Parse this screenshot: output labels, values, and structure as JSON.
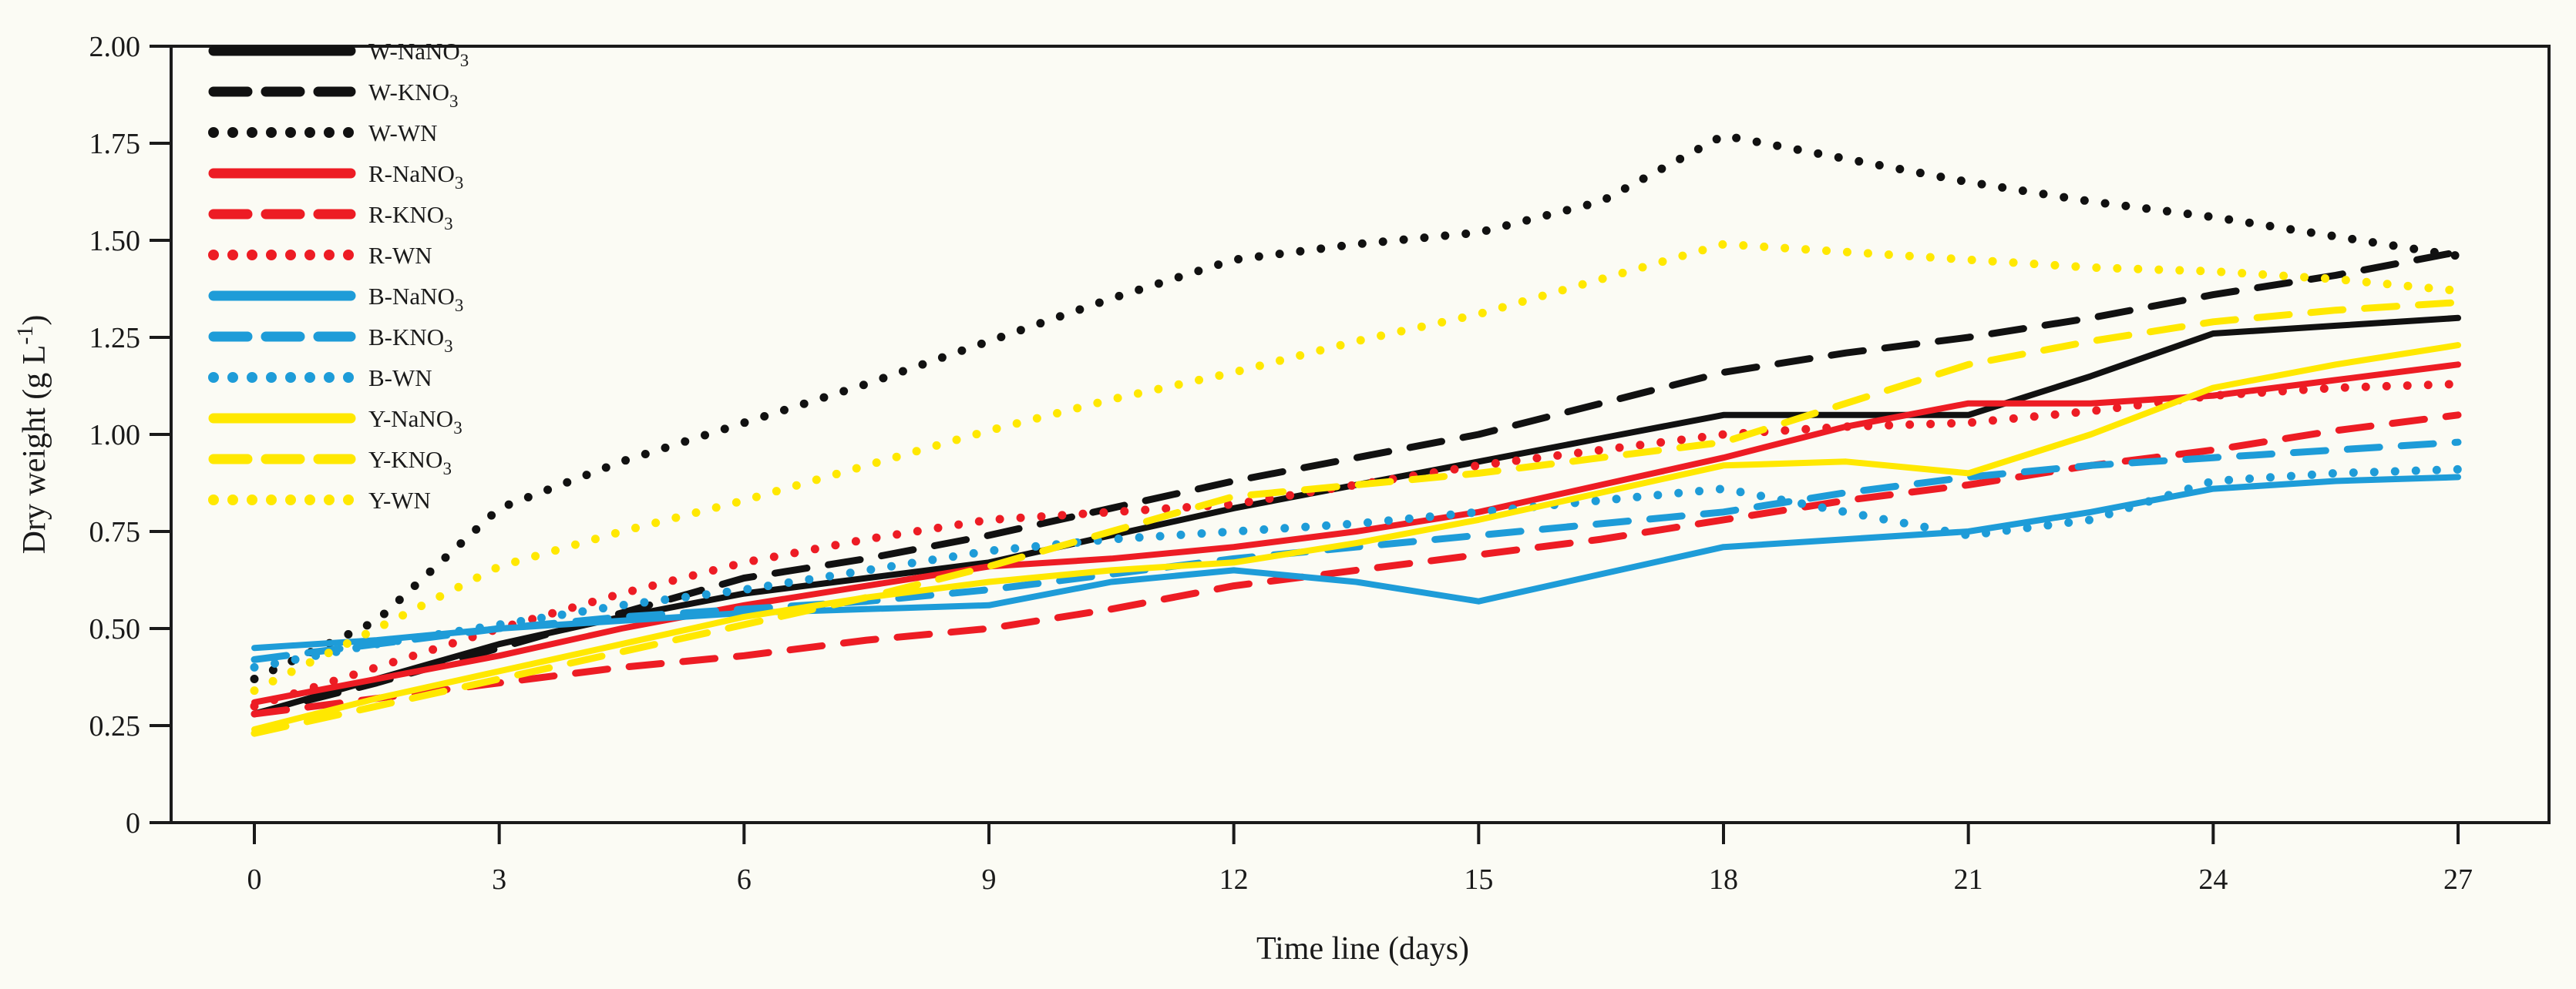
{
  "figure": {
    "background": "#fbfbf4",
    "frame_color": "#1a1a1a"
  },
  "chart_data": {
    "type": "line",
    "title": "",
    "xlabel": "Time line (days)",
    "ylabel": {
      "main": "Dry weight (g L",
      "sup": "-1",
      "end": ")"
    },
    "xlim": [
      0,
      27
    ],
    "ylim": [
      0,
      2.0
    ],
    "grid": false,
    "legend_position": "top-left-inside",
    "x": [
      0,
      1.5,
      3,
      4.5,
      6,
      7.5,
      9,
      10.5,
      12,
      13.5,
      15,
      16.5,
      18,
      19.5,
      21,
      22.5,
      24,
      25.5,
      27
    ],
    "xticks": [
      {
        "v": 0,
        "label": "0"
      },
      {
        "v": 3,
        "label": "3"
      },
      {
        "v": 6,
        "label": "6"
      },
      {
        "v": 9,
        "label": "9"
      },
      {
        "v": 12,
        "label": "12"
      },
      {
        "v": 15,
        "label": "15"
      },
      {
        "v": 18,
        "label": "18"
      },
      {
        "v": 21,
        "label": "21"
      },
      {
        "v": 24,
        "label": "24"
      },
      {
        "v": 27,
        "label": "27"
      }
    ],
    "yticks": [
      {
        "v": 2.0,
        "label": "2.00"
      },
      {
        "v": 1.75,
        "label": "1.75"
      },
      {
        "v": 1.5,
        "label": "1.50"
      },
      {
        "v": 1.25,
        "label": "1.25"
      },
      {
        "v": 1.0,
        "label": "1.00"
      },
      {
        "v": 0.75,
        "label": "0.75"
      },
      {
        "v": 0.5,
        "label": "0.50"
      },
      {
        "v": 0.25,
        "label": "0.25"
      },
      {
        "v": 0,
        "label": "0"
      }
    ],
    "series": [
      {
        "id": "W-NaNO3",
        "label_main": "W-NaNO",
        "label_sub": "3",
        "color": "#111111",
        "style": "solid",
        "values": [
          0.28,
          0.37,
          0.46,
          0.53,
          0.59,
          0.63,
          0.67,
          0.74,
          0.81,
          0.87,
          0.93,
          0.99,
          1.05,
          1.05,
          1.05,
          1.15,
          1.26,
          1.28,
          1.3
        ]
      },
      {
        "id": "W-KNO3",
        "label_main": "W-KNO",
        "label_sub": "3",
        "color": "#111111",
        "style": "dashed",
        "values": [
          0.28,
          0.36,
          0.45,
          0.54,
          0.63,
          0.68,
          0.74,
          0.81,
          0.88,
          0.94,
          1.0,
          1.08,
          1.16,
          1.21,
          1.25,
          1.3,
          1.36,
          1.41,
          1.47
        ]
      },
      {
        "id": "W-WN",
        "label_main": "W-WN",
        "label_sub": "",
        "color": "#111111",
        "style": "dotted",
        "values": [
          0.37,
          0.52,
          0.81,
          0.93,
          1.03,
          1.13,
          1.24,
          1.35,
          1.45,
          1.49,
          1.52,
          1.6,
          1.77,
          1.71,
          1.65,
          1.6,
          1.56,
          1.51,
          1.46
        ]
      },
      {
        "id": "R-NaNO3",
        "label_main": "R-NaNO",
        "label_sub": "3",
        "color": "#ED1C24",
        "style": "solid",
        "values": [
          0.31,
          0.37,
          0.43,
          0.5,
          0.56,
          0.61,
          0.66,
          0.68,
          0.71,
          0.75,
          0.8,
          0.87,
          0.94,
          1.02,
          1.08,
          1.08,
          1.1,
          1.14,
          1.18
        ]
      },
      {
        "id": "R-KNO3",
        "label_main": "R-KNO",
        "label_sub": "3",
        "color": "#ED1C24",
        "style": "dashed",
        "values": [
          0.28,
          0.32,
          0.36,
          0.4,
          0.43,
          0.47,
          0.5,
          0.55,
          0.61,
          0.65,
          0.69,
          0.73,
          0.78,
          0.83,
          0.87,
          0.92,
          0.96,
          1.01,
          1.05
        ]
      },
      {
        "id": "R-WN",
        "label_main": "R-WN",
        "label_sub": "",
        "color": "#ED1C24",
        "style": "dotted",
        "values": [
          0.3,
          0.4,
          0.5,
          0.59,
          0.67,
          0.73,
          0.78,
          0.8,
          0.82,
          0.87,
          0.92,
          0.96,
          1.0,
          1.02,
          1.03,
          1.06,
          1.1,
          1.12,
          1.13
        ]
      },
      {
        "id": "B-NaNO3",
        "label_main": "B-NaNO",
        "label_sub": "3",
        "color": "#1E9CD8",
        "style": "solid",
        "values": [
          0.45,
          0.47,
          0.5,
          0.52,
          0.54,
          0.55,
          0.56,
          0.62,
          0.65,
          0.62,
          0.57,
          0.64,
          0.71,
          0.73,
          0.75,
          0.8,
          0.86,
          0.88,
          0.89
        ]
      },
      {
        "id": "B-KNO3",
        "label_main": "B-KNO",
        "label_sub": "3",
        "color": "#1E9CD8",
        "style": "dashed",
        "values": [
          0.42,
          0.46,
          0.5,
          0.53,
          0.55,
          0.57,
          0.6,
          0.64,
          0.68,
          0.71,
          0.74,
          0.77,
          0.8,
          0.85,
          0.89,
          0.92,
          0.94,
          0.96,
          0.98
        ]
      },
      {
        "id": "B-WN",
        "label_main": "B-WN",
        "label_sub": "",
        "color": "#1E9CD8",
        "style": "dotted",
        "values": [
          0.4,
          0.46,
          0.51,
          0.56,
          0.6,
          0.65,
          0.7,
          0.73,
          0.75,
          0.77,
          0.8,
          0.83,
          0.86,
          0.8,
          0.74,
          0.78,
          0.88,
          0.9,
          0.91
        ]
      },
      {
        "id": "Y-NaNO3",
        "label_main": "Y-NaNO",
        "label_sub": "3",
        "color": "#FFE800",
        "style": "solid",
        "values": [
          0.24,
          0.32,
          0.39,
          0.46,
          0.53,
          0.58,
          0.62,
          0.65,
          0.67,
          0.72,
          0.78,
          0.85,
          0.92,
          0.93,
          0.9,
          1.0,
          1.12,
          1.18,
          1.23
        ]
      },
      {
        "id": "Y-KNO3",
        "label_main": "Y-KNO",
        "label_sub": "3",
        "color": "#FFE800",
        "style": "dashed",
        "values": [
          0.23,
          0.3,
          0.37,
          0.44,
          0.51,
          0.58,
          0.66,
          0.75,
          0.84,
          0.87,
          0.9,
          0.94,
          0.98,
          1.08,
          1.18,
          1.24,
          1.29,
          1.32,
          1.34
        ]
      },
      {
        "id": "Y-WN",
        "label_main": "Y-WN",
        "label_sub": "",
        "color": "#FFE800",
        "style": "dotted",
        "values": [
          0.34,
          0.5,
          0.66,
          0.75,
          0.83,
          0.92,
          1.01,
          1.09,
          1.16,
          1.24,
          1.31,
          1.4,
          1.49,
          1.47,
          1.45,
          1.43,
          1.42,
          1.4,
          1.37
        ]
      }
    ]
  }
}
